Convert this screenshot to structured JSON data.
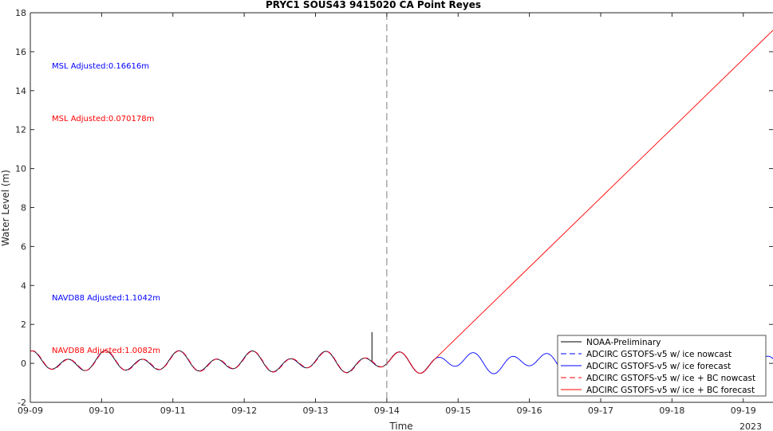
{
  "chart_data": {
    "type": "line",
    "title": "PRYC1 SOUS43 9415020 CA Point Reyes",
    "xlabel": "Time",
    "ylabel": "Water Level (m)",
    "x_axis_type": "date",
    "x_range": [
      "2023-09-09 00:00",
      "2023-09-19 10:00"
    ],
    "x_ticks": [
      "09-09",
      "09-10",
      "09-11",
      "09-12",
      "09-13",
      "09-14",
      "09-15",
      "09-16",
      "09-17",
      "09-18",
      "09-19"
    ],
    "x_year_label": "2023",
    "ylim": [
      -2,
      18
    ],
    "y_ticks": [
      -2,
      0,
      2,
      4,
      6,
      8,
      10,
      12,
      14,
      16,
      18
    ],
    "grid": false,
    "nowcast_forecast_divider": "2023-09-14 00:00",
    "annotations": [
      {
        "text": "MSL Adjusted:0.16616m",
        "color": "#0000ff"
      },
      {
        "text": "MSL Adjusted:0.070178m",
        "color": "#ff0000"
      },
      {
        "text": "NAVD88 Adjusted:1.1042m",
        "color": "#0000ff"
      },
      {
        "text": "NAVD88 Adjusted:1.0082m",
        "color": "#ff0000"
      }
    ],
    "legend_position": "bottom-right",
    "series": [
      {
        "name": "NOAA-Preliminary",
        "color": "#000000",
        "dash": "solid",
        "x_start": "2023-09-09 00:00",
        "x_end": "2023-09-14 16:00",
        "spike": {
          "x": "2023-09-13 19:00",
          "y": 1.6
        }
      },
      {
        "name": "ADCIRC GSTOFS-v5 w/ ice nowcast",
        "color": "#0000ff",
        "dash": "dashed",
        "x_start": "2023-09-09 00:00",
        "x_end": "2023-09-14 00:00"
      },
      {
        "name": "ADCIRC GSTOFS-v5 w/ ice forecast",
        "color": "#0000ff",
        "dash": "solid",
        "x_start": "2023-09-14 00:00",
        "x_end": "2023-09-19 10:00"
      },
      {
        "name": "ADCIRC GSTOFS-v5 w/ ice + BC nowcast",
        "color": "#ff0000",
        "dash": "dashed",
        "x_start": "2023-09-09 00:00",
        "x_end": "2023-09-14 00:00"
      },
      {
        "name": "ADCIRC GSTOFS-v5 w/ ice + BC forecast",
        "color": "#ff0000",
        "dash": "solid",
        "x_start": "2023-09-14 00:00",
        "x_end": "2023-09-19 10:00",
        "trend": {
          "from": {
            "x": "2023-09-14 16:00",
            "y": -0.3
          },
          "to": {
            "x": "2023-09-19 10:00",
            "y": 17.1
          }
        }
      }
    ]
  }
}
